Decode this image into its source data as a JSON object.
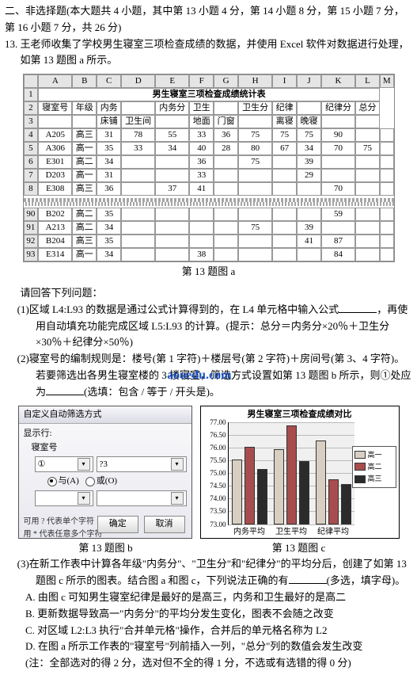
{
  "section_title": "二、非选择题(本大题共 4 小题，其中第 13 小题 4 分，第 14 小题 8 分，第 15 小题 7 分，第 16 小题 7 分，共 26 分)",
  "q13_intro": "13. 王老师收集了学校男生寝室三项检查成绩的数据，并使用 Excel 软件对数据进行处理，如第 13 题图 a 所示。",
  "excel": {
    "cols": [
      "",
      "A",
      "B",
      "C",
      "D",
      "E",
      "F",
      "G",
      "H",
      "I",
      "J",
      "K",
      "L",
      "M"
    ],
    "title_row": "男生寝室三项检查成绩统计表",
    "header1": [
      "寝室号",
      "年级",
      "内务",
      "",
      "内务分",
      "卫生",
      "",
      "卫生分",
      "纪律",
      "",
      "纪律分",
      "总分"
    ],
    "header2": [
      "",
      "",
      "床铺",
      "卫生间",
      "",
      "地面",
      "门窗",
      "",
      "离寝",
      "晚寝",
      "",
      ""
    ],
    "rows_top": [
      [
        "4",
        "A205",
        "高三",
        "31",
        "78",
        "55",
        "33",
        "36",
        "75",
        "75",
        "75",
        "90",
        ""
      ],
      [
        "5",
        "A306",
        "高一",
        "35",
        "33",
        "34",
        "40",
        "28",
        "80",
        "67",
        "34",
        "70",
        "75"
      ],
      [
        "6",
        "E301",
        "高二",
        "34",
        "",
        "",
        "36",
        "",
        "75",
        "",
        "39",
        "",
        ""
      ],
      [
        "7",
        "D203",
        "高一",
        "31",
        "",
        "",
        "33",
        "",
        "",
        "",
        "29",
        "",
        ""
      ],
      [
        "8",
        "E308",
        "高三",
        "36",
        "",
        "37",
        "41",
        "",
        "",
        "",
        "",
        "70",
        ""
      ]
    ],
    "rows_bot": [
      [
        "90",
        "B202",
        "高二",
        "35",
        "",
        "",
        "",
        "",
        "",
        "",
        "",
        "59",
        ""
      ],
      [
        "91",
        "A213",
        "高二",
        "34",
        "",
        "",
        "",
        "",
        "75",
        "",
        "39",
        "",
        ""
      ],
      [
        "92",
        "B204",
        "高三",
        "35",
        "",
        "",
        "",
        "",
        "",
        "",
        "41",
        "87",
        ""
      ],
      [
        "93",
        "E314",
        "高一",
        "34",
        "",
        "",
        "38",
        "",
        "",
        "",
        "",
        "84",
        ""
      ]
    ]
  },
  "caption_a": "第 13 题图 a",
  "q_prompt": "请回答下列问题：",
  "q1": "(1)区域 L4:L93 的数据是通过公式计算得到的，在 L4 单元格中输入公式",
  "q1_tail": "，再使用自动填充功能完成区域 L5:L93 的计算。(提示：总分＝内务分×20％＋卫生分×30％＋纪律分×50％)",
  "q2": "(2)寝室号的编制规则是：楼号(第 1 字符)＋楼层号(第 2 字符)＋房间号(第 3、4 字符)。若要筛选出各男生寝室楼的 3 楼寝室，筛选方式设置如第 13 题图 b 所示，则①处应为",
  "q2_tail": "(选填：包含 / 等于 / 开头是)。",
  "wm": "aooedu.com",
  "dialog": {
    "title": "自定义自动筛选方式",
    "show_row": "显示行:",
    "field": "寝室号",
    "slot": "①",
    "val": "?3",
    "and": "与(A)",
    "or": "或(O)",
    "hint1": "可用 ? 代表单个字符",
    "hint2": "用 * 代表任意多个字符",
    "ok": "确定",
    "cancel": "取消"
  },
  "chart": {
    "title": "男生寝室三项检查成绩对比",
    "yticks": [
      "77.00",
      "76.50",
      "76.00",
      "75.50",
      "75.00",
      "74.50",
      "74.00",
      "73.50",
      "73.00"
    ],
    "series": [
      "高一",
      "高二",
      "高三"
    ],
    "colors": [
      "#d8cfc2",
      "#a84d4d",
      "#2b2b2b"
    ],
    "groups": [
      {
        "label": "内务平均",
        "v": [
          0.62,
          0.74,
          0.52
        ]
      },
      {
        "label": "卫生平均",
        "v": [
          0.72,
          0.95,
          0.6
        ]
      },
      {
        "label": "纪律平均",
        "v": [
          0.8,
          0.42,
          0.38
        ]
      }
    ]
  },
  "caption_b": "第 13 题图 b",
  "caption_c": "第 13 题图 c",
  "q3": "(3)在新工作表中计算各年级\"内务分\"、\"卫生分\"和\"纪律分\"的平均分后，创建了如第 13 题图 c 所示的图表。结合图 a 和图 c，下列说法正确的有",
  "q3_tail": "(多选，填字母)。",
  "opts": {
    "A": "A. 由图 c 可知男生寝室纪律是最好的是高三，内务和卫生最好的是高二",
    "B": "B. 更新数据导致高一\"内务分\"的平均分发生变化，图表不会随之改变",
    "C": "C. 对区域 L2:L3 执行\"合并单元格\"操作，合并后的单元格名称为 L2",
    "D": "D. 在图 a 所示工作表的\"寝室号\"列前插入一列，\"总分\"列的数值会发生改变"
  },
  "note": "(注：全部选对的得 2 分，选对但不全的得 1 分，不选或有选错的得 0 分)"
}
